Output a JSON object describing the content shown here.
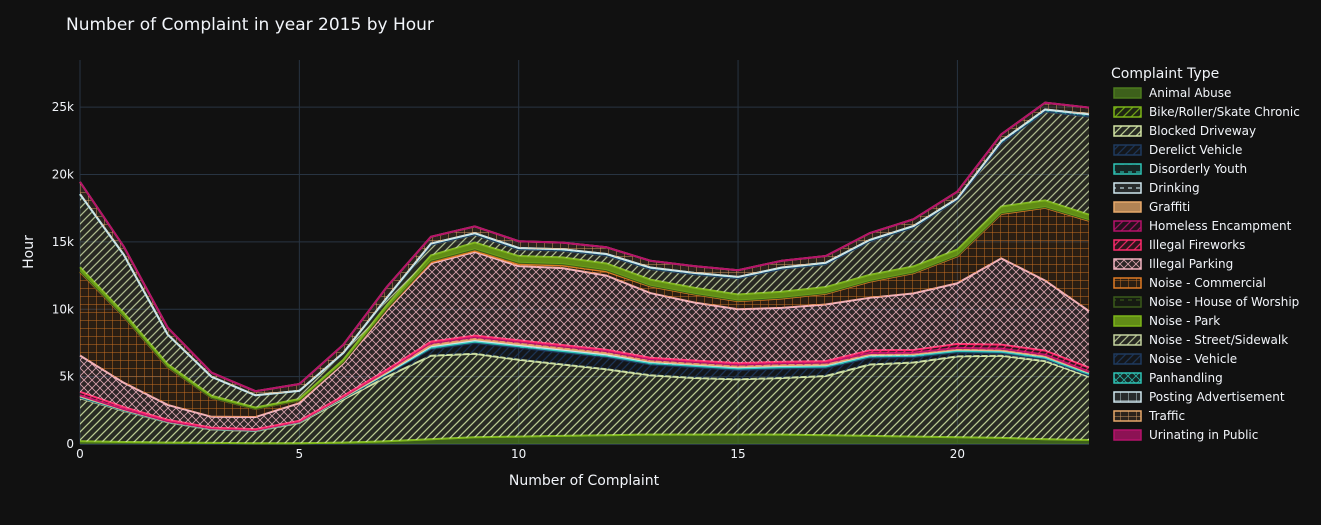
{
  "chart_data": {
    "type": "area",
    "title": "Number of Complaint in year 2015 by Hour",
    "xlabel": "Number of Complaint",
    "ylabel": "Hour",
    "xlim": [
      0,
      23
    ],
    "ylim": [
      0,
      28500
    ],
    "x_ticks": [
      0,
      5,
      10,
      15,
      20
    ],
    "x_tick_labels": [
      "0",
      "5",
      "10",
      "15",
      "20"
    ],
    "y_ticks": [
      0,
      5000,
      10000,
      15000,
      20000,
      25000
    ],
    "y_tick_labels": [
      "0",
      "5k",
      "10k",
      "15k",
      "20k",
      "25k"
    ],
    "grid": true,
    "legend_title": "Complaint Type",
    "legend_position": "right",
    "x": [
      0,
      1,
      2,
      3,
      4,
      5,
      6,
      7,
      8,
      9,
      10,
      11,
      12,
      13,
      14,
      15,
      16,
      17,
      18,
      19,
      20,
      21,
      22,
      23
    ],
    "series": [
      {
        "name": "Animal Abuse",
        "color": "#4c7a1e",
        "pattern": "solid",
        "values": [
          200,
          150,
          100,
          80,
          60,
          60,
          100,
          200,
          350,
          500,
          550,
          600,
          650,
          700,
          700,
          700,
          700,
          650,
          600,
          550,
          500,
          450,
          350,
          300
        ]
      },
      {
        "name": "Bike/Roller/Skate Chronic",
        "color": "#7cb518",
        "pattern": "diag",
        "values": [
          0,
          0,
          0,
          0,
          0,
          0,
          0,
          0,
          0,
          0,
          0,
          0,
          0,
          0,
          0,
          0,
          0,
          0,
          0,
          0,
          0,
          0,
          0,
          0
        ]
      },
      {
        "name": "Blocked Driveway",
        "color": "#d4e6a5",
        "pattern": "diag",
        "values": [
          3200,
          2300,
          1500,
          1000,
          900,
          1500,
          3200,
          4800,
          6200,
          6200,
          5700,
          5300,
          4900,
          4400,
          4200,
          4100,
          4200,
          4400,
          5300,
          5500,
          6000,
          6100,
          5800,
          4700
        ]
      },
      {
        "name": "Derelict Vehicle",
        "color": "#1f3a5f",
        "pattern": "diag",
        "values": [
          50,
          30,
          20,
          20,
          20,
          50,
          100,
          200,
          500,
          800,
          900,
          900,
          900,
          800,
          800,
          700,
          700,
          600,
          500,
          400,
          300,
          200,
          150,
          100
        ]
      },
      {
        "name": "Disorderly Youth",
        "color": "#2ec4b6",
        "pattern": "dash",
        "values": [
          50,
          30,
          20,
          20,
          20,
          20,
          30,
          50,
          100,
          100,
          100,
          100,
          100,
          100,
          100,
          100,
          100,
          100,
          100,
          100,
          100,
          100,
          100,
          100
        ]
      },
      {
        "name": "Drinking",
        "color": "#cfe8ef",
        "pattern": "dash",
        "values": [
          50,
          30,
          20,
          20,
          20,
          20,
          30,
          50,
          100,
          100,
          100,
          100,
          100,
          100,
          100,
          100,
          100,
          100,
          100,
          100,
          100,
          100,
          100,
          100
        ]
      },
      {
        "name": "Graffiti",
        "color": "#e8a96b",
        "pattern": "solid",
        "values": [
          20,
          10,
          10,
          10,
          10,
          10,
          10,
          50,
          100,
          100,
          100,
          100,
          100,
          50,
          50,
          50,
          50,
          50,
          50,
          30,
          30,
          30,
          30,
          20
        ]
      },
      {
        "name": "Homeless Encampment",
        "color": "#b5126b",
        "pattern": "diag",
        "values": [
          50,
          40,
          30,
          20,
          20,
          20,
          50,
          100,
          150,
          150,
          150,
          150,
          150,
          150,
          150,
          150,
          150,
          150,
          100,
          100,
          100,
          100,
          100,
          50
        ]
      },
      {
        "name": "Illegal Fireworks",
        "color": "#ff2a6d",
        "pattern": "diag",
        "values": [
          250,
          150,
          100,
          50,
          50,
          50,
          50,
          80,
          100,
          100,
          100,
          100,
          100,
          100,
          100,
          100,
          100,
          100,
          200,
          200,
          300,
          300,
          300,
          300
        ]
      },
      {
        "name": "Illegal Parking",
        "color": "#f4b6c2",
        "pattern": "cross",
        "values": [
          2700,
          1800,
          1100,
          800,
          900,
          1300,
          2400,
          4400,
          5800,
          6200,
          5500,
          5700,
          5500,
          4800,
          4300,
          4000,
          4000,
          4200,
          3900,
          4200,
          4500,
          6400,
          5200,
          4200
        ]
      },
      {
        "name": "Noise - Commercial",
        "color": "#e07b24",
        "pattern": "grid",
        "values": [
          6200,
          4900,
          2800,
          1400,
          600,
          200,
          100,
          100,
          100,
          100,
          150,
          200,
          300,
          500,
          600,
          600,
          700,
          800,
          1200,
          1500,
          2000,
          3300,
          5400,
          6700
        ]
      },
      {
        "name": "Noise - House of Worship",
        "color": "#3a5a1a",
        "pattern": "dash",
        "values": [
          50,
          30,
          20,
          10,
          10,
          10,
          20,
          50,
          100,
          100,
          100,
          100,
          100,
          50,
          50,
          50,
          50,
          50,
          50,
          50,
          50,
          50,
          50,
          50
        ]
      },
      {
        "name": "Noise - Park",
        "color": "#7cb518",
        "pattern": "solid",
        "values": [
          300,
          250,
          200,
          150,
          100,
          100,
          150,
          250,
          400,
          500,
          500,
          500,
          500,
          450,
          450,
          450,
          450,
          450,
          450,
          450,
          450,
          500,
          500,
          400
        ]
      },
      {
        "name": "Noise - Street/Sidewalk",
        "color": "#c5d4a0",
        "pattern": "diag",
        "values": [
          5400,
          4300,
          2200,
          1400,
          900,
          600,
          500,
          500,
          800,
          600,
          500,
          500,
          600,
          800,
          1000,
          1200,
          1700,
          1700,
          2500,
          2900,
          3700,
          4700,
          6600,
          7300
        ]
      },
      {
        "name": "Noise - Vehicle",
        "color": "#1f3a5f",
        "pattern": "diag",
        "values": [
          0,
          0,
          0,
          0,
          0,
          0,
          0,
          0,
          0,
          0,
          0,
          0,
          0,
          0,
          0,
          0,
          0,
          0,
          0,
          0,
          0,
          0,
          0,
          0
        ]
      },
      {
        "name": "Panhandling",
        "color": "#2ec4b6",
        "pattern": "cross",
        "values": [
          30,
          20,
          10,
          10,
          10,
          10,
          20,
          50,
          80,
          100,
          100,
          100,
          100,
          100,
          100,
          100,
          100,
          100,
          100,
          100,
          100,
          150,
          150,
          150
        ]
      },
      {
        "name": "Posting Advertisement",
        "color": "#cfe8ef",
        "pattern": "grid",
        "values": [
          0,
          0,
          0,
          0,
          0,
          0,
          0,
          0,
          0,
          0,
          0,
          0,
          0,
          0,
          0,
          0,
          0,
          0,
          0,
          0,
          0,
          0,
          0,
          0
        ]
      },
      {
        "name": "Traffic",
        "color": "#e8a96b",
        "pattern": "grid",
        "values": [
          900,
          600,
          500,
          300,
          300,
          500,
          600,
          800,
          500,
          500,
          500,
          500,
          500,
          500,
          500,
          500,
          500,
          500,
          500,
          500,
          500,
          500,
          500,
          500
        ]
      },
      {
        "name": "Urinating in Public",
        "color": "#b5126b",
        "pattern": "solid",
        "values": [
          0,
          0,
          0,
          0,
          0,
          0,
          0,
          0,
          0,
          0,
          0,
          0,
          0,
          0,
          0,
          0,
          0,
          0,
          0,
          0,
          0,
          0,
          0,
          0
        ]
      }
    ]
  }
}
